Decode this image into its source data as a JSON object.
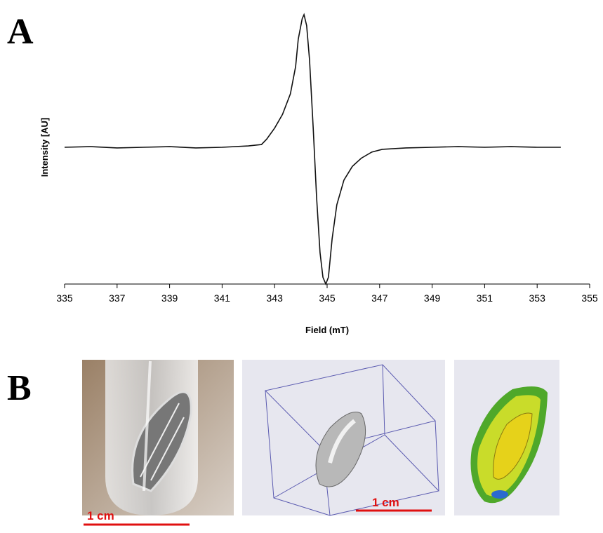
{
  "panel_a": {
    "label": "A"
  },
  "chart_data": {
    "type": "line",
    "x_label": "Field (mT)",
    "y_label": "Intensity [AU]",
    "x": [
      335,
      336,
      337,
      338,
      339,
      340,
      341,
      342,
      342.5,
      342.7,
      343,
      343.3,
      343.6,
      343.8,
      343.9,
      344.05,
      344.12,
      344.22,
      344.33,
      344.47,
      344.6,
      344.73,
      344.84,
      344.95,
      345.05,
      345.19,
      345.37,
      345.64,
      345.96,
      346.3,
      346.7,
      347.1,
      348,
      349,
      350,
      351,
      352,
      353,
      353.9
    ],
    "values": [
      0,
      0.005,
      -0.005,
      0,
      0.005,
      -0.005,
      0,
      0.01,
      0.02,
      0.06,
      0.14,
      0.24,
      0.39,
      0.59,
      0.79,
      0.94,
      0.97,
      0.89,
      0.64,
      0.14,
      -0.37,
      -0.77,
      -0.95,
      -1,
      -0.95,
      -0.67,
      -0.42,
      -0.24,
      -0.14,
      -0.08,
      -0.035,
      -0.015,
      -0.005,
      0,
      0.005,
      0,
      0.005,
      0,
      0
    ],
    "color": "#111111",
    "xlim": [
      335,
      355
    ],
    "xticks": [
      335,
      337,
      339,
      341,
      343,
      345,
      347,
      349,
      351,
      353,
      355
    ],
    "ylim": [
      -1,
      1
    ]
  },
  "panel_b": {
    "label": "B",
    "scale_bars": [
      "1 cm",
      "1 cm"
    ]
  }
}
